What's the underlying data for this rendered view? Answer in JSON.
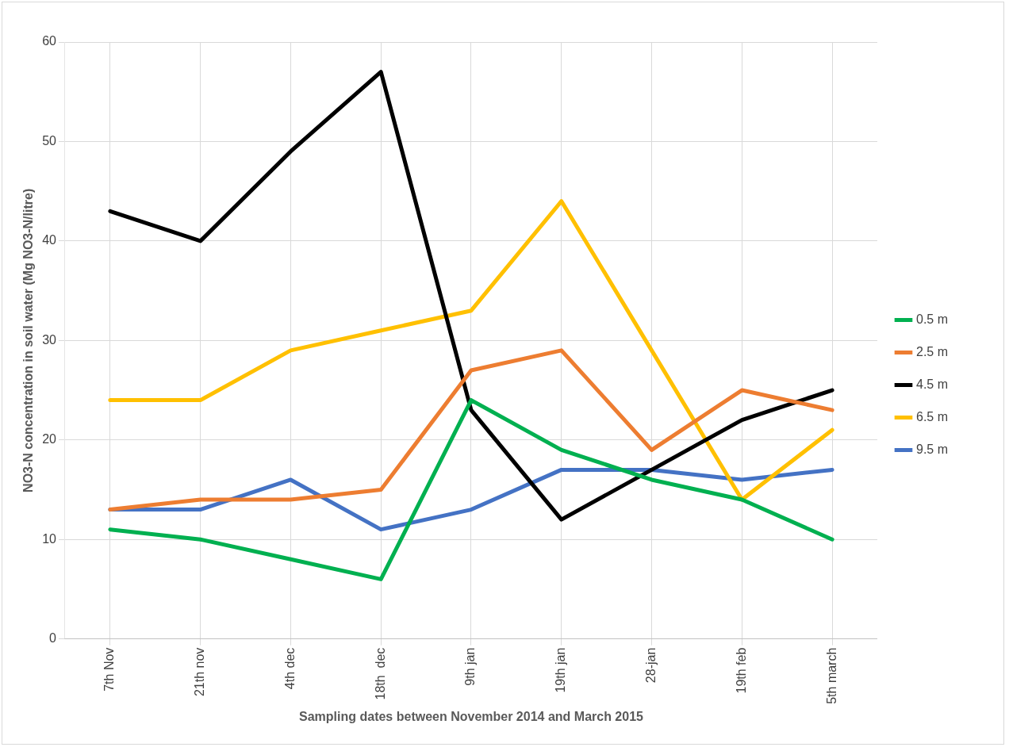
{
  "chart_data": {
    "type": "line",
    "xlabel": "Sampling dates between November 2014 and March 2015",
    "ylabel": "NO3-N concentration in soil water (Mg NO3-N/litre)",
    "categories": [
      "7th Nov",
      "21th nov",
      "4th dec",
      "18th  dec",
      "9th jan",
      "19th jan",
      "28-jan",
      "19th feb",
      "5th march"
    ],
    "series": [
      {
        "name": "0.5 m",
        "color": "#00b050",
        "values": [
          11,
          10,
          8,
          6,
          24,
          19,
          16,
          14,
          10
        ]
      },
      {
        "name": "2.5 m",
        "color": "#ed7d31",
        "values": [
          13,
          14,
          14,
          15,
          27,
          29,
          19,
          25,
          23
        ]
      },
      {
        "name": "4.5 m",
        "color": "#000000",
        "values": [
          43,
          40,
          49,
          57,
          23,
          12,
          17,
          22,
          25
        ]
      },
      {
        "name": "6.5 m",
        "color": "#ffc000",
        "values": [
          24,
          24,
          29,
          31,
          33,
          44,
          29,
          14,
          21
        ]
      },
      {
        "name": "9.5 m",
        "color": "#4472c4",
        "values": [
          13,
          13,
          16,
          11,
          13,
          17,
          17,
          16,
          17
        ]
      }
    ],
    "ylim": [
      0,
      60
    ],
    "yticks": [
      0,
      10,
      20,
      30,
      40,
      50,
      60
    ],
    "grid": true,
    "legend": "right",
    "marker": "none",
    "line_style": "solid"
  }
}
